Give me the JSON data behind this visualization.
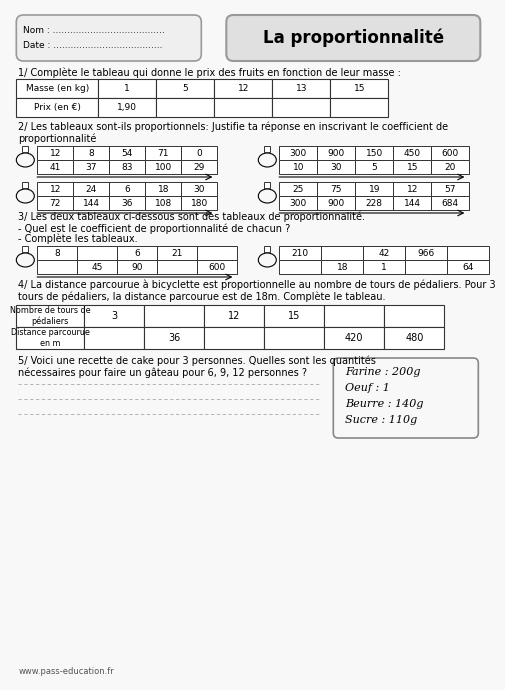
{
  "title": "La proportionnalité",
  "bg_color": "#f8f8f8",
  "header_left_lines": [
    "Nom : .......................................",
    "Date : ......................................"
  ],
  "section1_title": "1/ Complète le tableau qui donne le prix des fruits en fonction de leur masse :",
  "table1_headers": [
    "Masse (en kg)",
    "1",
    "5",
    "12",
    "13",
    "15"
  ],
  "table1_row2": [
    "Prix (en €)",
    "1,90",
    "",
    "",
    "",
    ""
  ],
  "section2_title1": "2/ Les tableaux sont-ils proportionnels: Justifie ta réponse en inscrivant le coefficient de",
  "section2_title2": "proportionnalité",
  "table2a": [
    [
      "12",
      "8",
      "54",
      "71",
      "0"
    ],
    [
      "41",
      "37",
      "83",
      "100",
      "29"
    ]
  ],
  "table2b": [
    [
      "300",
      "900",
      "150",
      "450",
      "600"
    ],
    [
      "10",
      "30",
      "5",
      "15",
      "20"
    ]
  ],
  "table2c": [
    [
      "12",
      "24",
      "6",
      "18",
      "30"
    ],
    [
      "72",
      "144",
      "36",
      "108",
      "180"
    ]
  ],
  "table2d": [
    [
      "25",
      "75",
      "19",
      "12",
      "57"
    ],
    [
      "300",
      "900",
      "228",
      "144",
      "684"
    ]
  ],
  "section3_title": "3/ Les deux tableaux ci-dessous sont des tableaux de proportionnalité.",
  "section3_line1": "- Quel est le coefficient de proportionnalité de chacun ?",
  "section3_line2": "- Complète les tableaux.",
  "table3a": [
    [
      "8",
      "",
      "6",
      "21",
      ""
    ],
    [
      "",
      "45",
      "90",
      "",
      "600"
    ]
  ],
  "table3b": [
    [
      "210",
      "",
      "42",
      "966",
      ""
    ],
    [
      "",
      "18",
      "1",
      "",
      "64"
    ]
  ],
  "section4_title1": "4/ La distance parcourue à bicyclette est proportionnelle au nombre de tours de pédaliers. Pour 3",
  "section4_title2": "tours de pédaliers, la distance parcourue est de 18m. Complète le tableau.",
  "table4_r1_label": "Nombre de tours de\npédaliers",
  "table4_r1_vals": [
    "3",
    "",
    "12",
    "15",
    "",
    ""
  ],
  "table4_r2_label": "Distance parcourue\nen m",
  "table4_r2_vals": [
    "",
    "36",
    "",
    "",
    "420",
    "480"
  ],
  "section5_title1": "5/ Voici une recette de cake pour 3 personnes. Quelles sont les quantités",
  "section5_title2": "nécessaires pour faire un gâteau pour 6, 9, 12 personnes ?",
  "recipe_lines": [
    "Farine : 200g",
    "Oeuf : 1",
    "Beurre : 140g",
    "Sucre : 110g"
  ],
  "footer": "www.pass-education.fr"
}
